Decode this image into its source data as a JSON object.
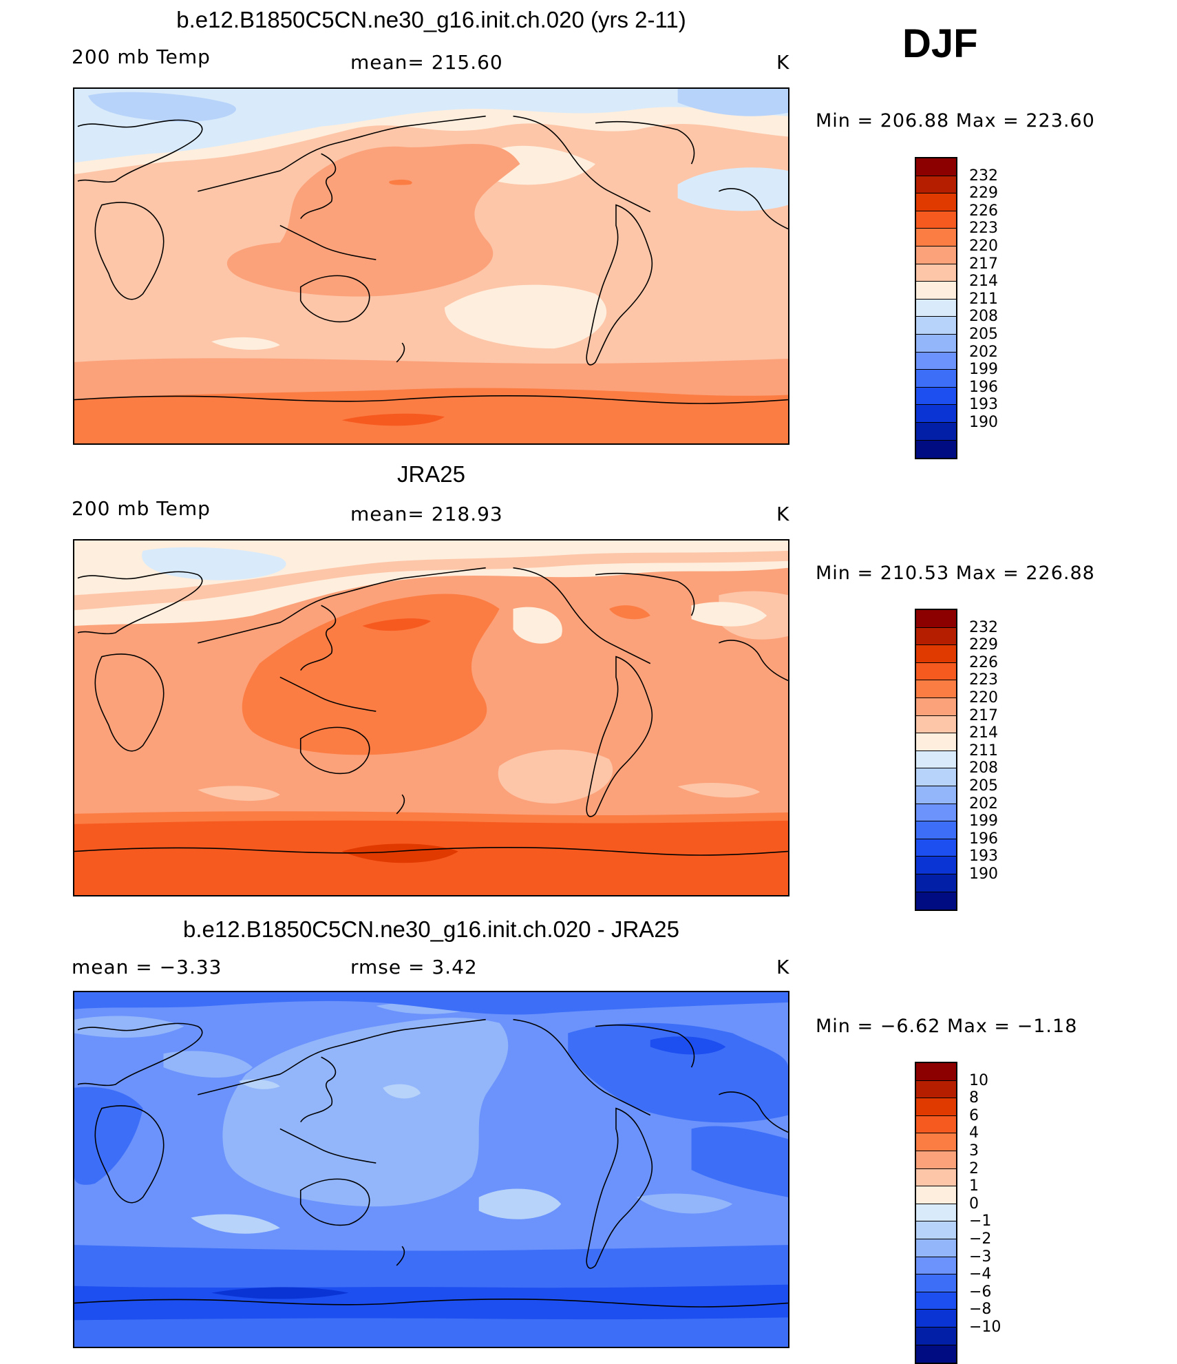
{
  "season": "DJF",
  "panels": [
    {
      "title": "b.e12.B1850C5CN.ne30_g16.init.ch.020 (yrs 2-11)",
      "left_label": "200 mb Temp",
      "center_label": "mean=  215.60",
      "units": "K",
      "minmax": "Min  =  206.88  Max  =  223.60"
    },
    {
      "title": "JRA25",
      "left_label": "200 mb Temp",
      "center_label": "mean=  218.93",
      "units": "K",
      "minmax": "Min  =  210.53  Max  =  226.88"
    },
    {
      "title": "b.e12.B1850C5CN.ne30_g16.init.ch.020 - JRA25",
      "left_label": "mean  =    −3.33",
      "center_label": "rmse  =     3.42",
      "units": "K",
      "minmax": "Min  =    −6.62  Max  =   −1.18"
    }
  ],
  "colorbar_colors": [
    "#8c0000",
    "#b51f00",
    "#e03a00",
    "#f75a1f",
    "#fb7d44",
    "#fca27a",
    "#fdc6a8",
    "#feeedd",
    "#d9ebfa",
    "#b7d3fa",
    "#93b6fb",
    "#6b93fb",
    "#3d6ef8",
    "#1d4ef0",
    "#0a34d4",
    "#021fa8",
    "#000d82"
  ],
  "colorbar_levels_temp": [
    "232",
    "229",
    "226",
    "223",
    "220",
    "217",
    "214",
    "211",
    "208",
    "205",
    "202",
    "199",
    "196",
    "193",
    "190"
  ],
  "colorbar_levels_diff": [
    "10",
    "8",
    "6",
    "4",
    "3",
    "2",
    "1",
    "0",
    "−1",
    "−2",
    "−3",
    "−4",
    "−6",
    "−8",
    "−10"
  ],
  "chart_data": [
    {
      "type": "heatmap",
      "title": "b.e12.B1850C5CN.ne30_g16.init.ch.020 (yrs 2-11)",
      "variable": "200 mb Temp",
      "units": "K",
      "mean": 215.6,
      "min": 206.88,
      "max": 223.6,
      "contour_levels": [
        190,
        193,
        196,
        199,
        202,
        205,
        208,
        211,
        214,
        217,
        220,
        223,
        226,
        229,
        232
      ]
    },
    {
      "type": "heatmap",
      "title": "JRA25",
      "variable": "200 mb Temp",
      "units": "K",
      "mean": 218.93,
      "min": 210.53,
      "max": 226.88,
      "contour_levels": [
        190,
        193,
        196,
        199,
        202,
        205,
        208,
        211,
        214,
        217,
        220,
        223,
        226,
        229,
        232
      ]
    },
    {
      "type": "heatmap",
      "title": "b.e12.B1850C5CN.ne30_g16.init.ch.020 - JRA25",
      "units": "K",
      "mean": -3.33,
      "rmse": 3.42,
      "min": -6.62,
      "max": -1.18,
      "contour_levels": [
        -10,
        -8,
        -6,
        -4,
        -3,
        -2,
        -1,
        0,
        1,
        2,
        3,
        4,
        6,
        8,
        10
      ]
    }
  ]
}
